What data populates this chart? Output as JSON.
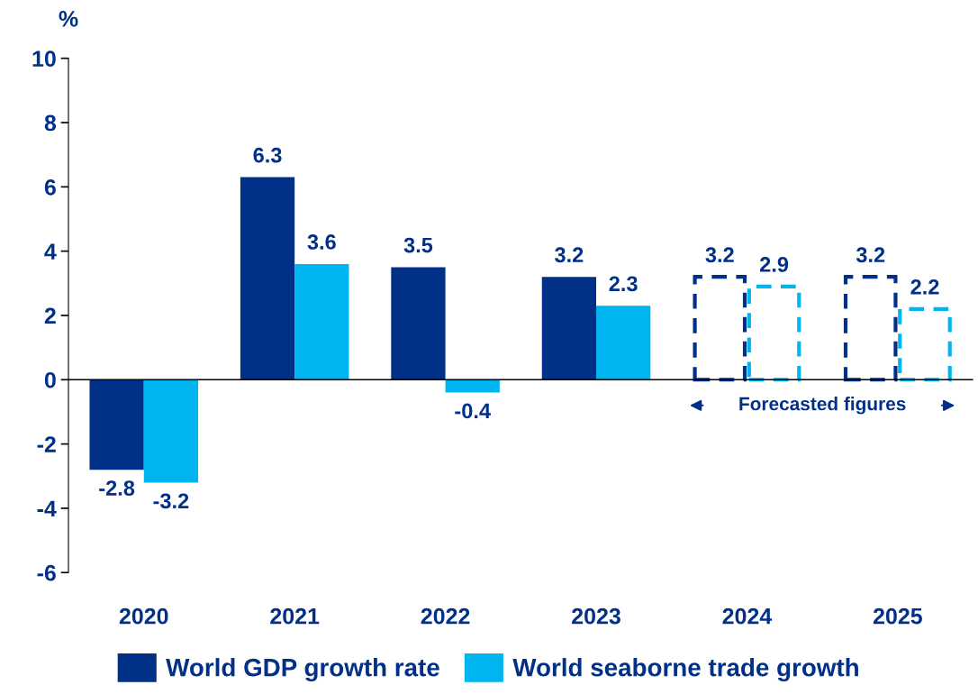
{
  "chart_data": {
    "type": "bar",
    "ylabel": "%",
    "categories": [
      "2020",
      "2021",
      "2022",
      "2023",
      "2024",
      "2025"
    ],
    "series": [
      {
        "name": "World GDP growth rate",
        "color": "#003087",
        "values": [
          -2.8,
          6.3,
          3.5,
          3.2,
          null,
          null
        ]
      },
      {
        "name": "World seaborne trade growth",
        "color": "#00b5ef",
        "values": [
          -3.2,
          3.6,
          -0.4,
          2.3,
          null,
          null
        ]
      },
      {
        "color": "#003087",
        "values": [
          null,
          null,
          null,
          null,
          3.2,
          3.2
        ],
        "line_style": "dashed"
      },
      {
        "color": "#00b5ef",
        "values": [
          null,
          null,
          null,
          null,
          2.9,
          2.2
        ],
        "line_style": "dashed"
      }
    ],
    "ylim": [
      -6,
      10
    ],
    "yticks": [
      -6,
      -4,
      -2,
      0,
      2,
      4,
      6,
      8,
      10
    ],
    "ref_lines": [
      {
        "axis": "y",
        "value": 0,
        "color": "#000000"
      }
    ],
    "annotations": [
      "Forecasted figures"
    ],
    "data_labels": true,
    "legend": "bottom"
  }
}
